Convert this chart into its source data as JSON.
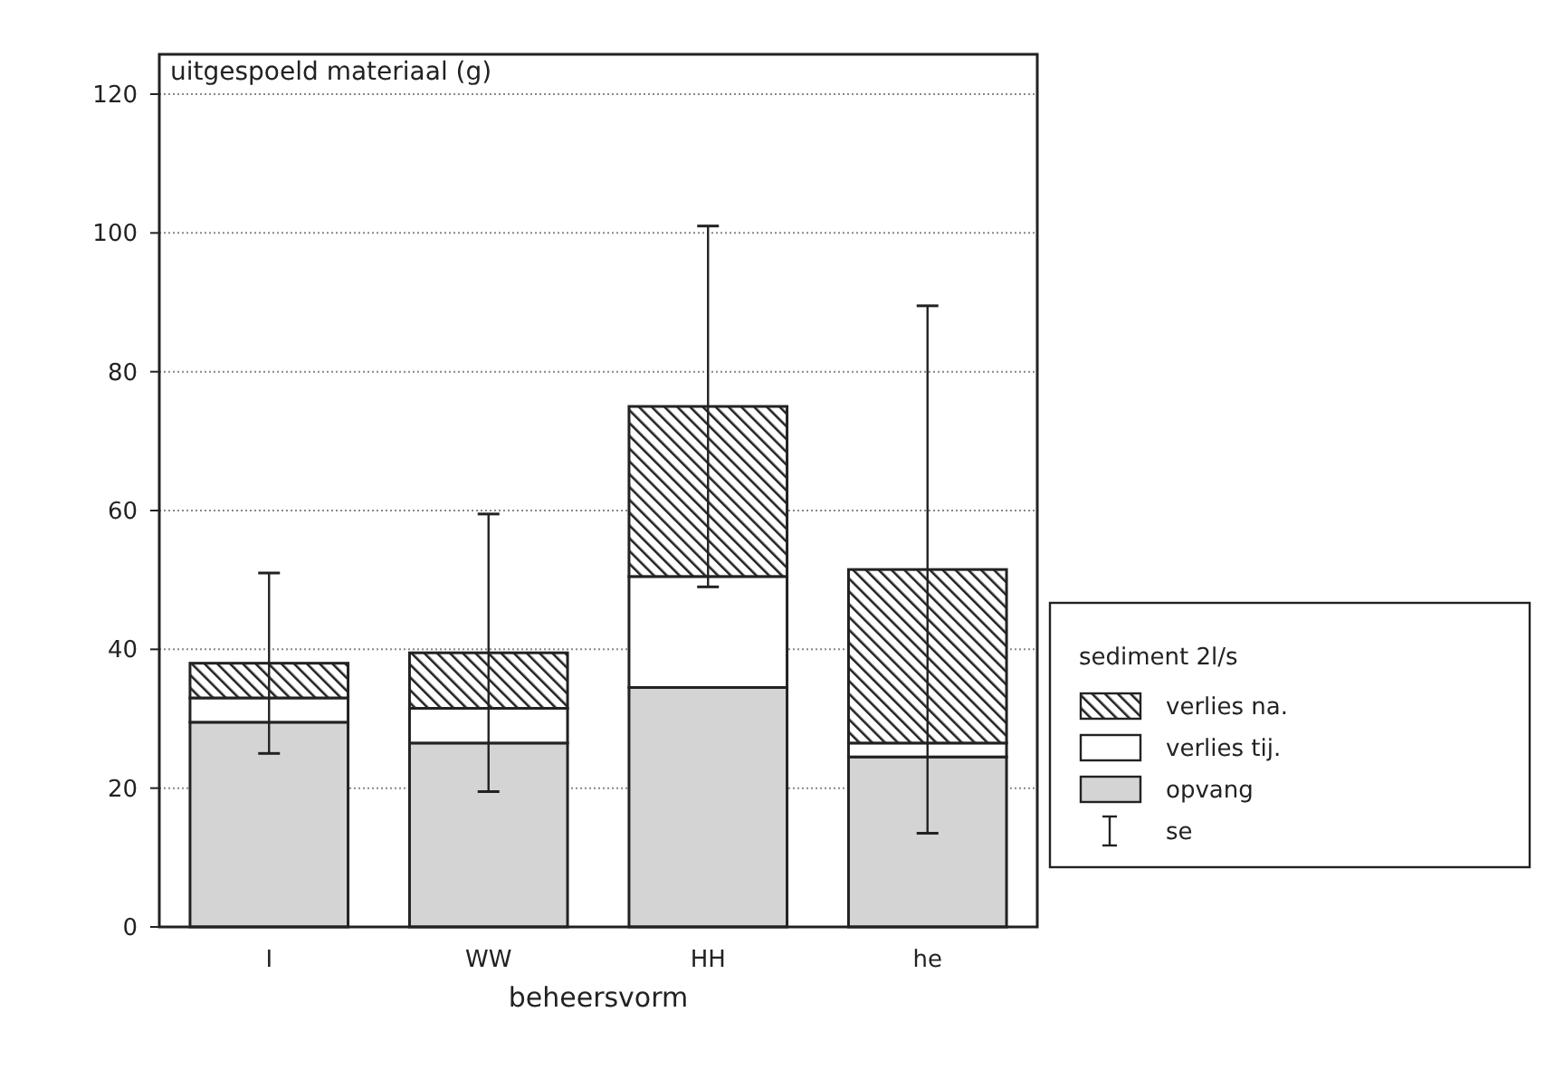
{
  "chart_data": {
    "type": "bar",
    "stacked": true,
    "ylabel": "uitgespoeld materiaal (g)",
    "xlabel": "beheersvorm",
    "legend_title": "sediment 2l/s",
    "categories": [
      "I",
      "WW",
      "HH",
      "he"
    ],
    "series": [
      {
        "name": "opvang",
        "color": "#d4d4d4",
        "values": [
          29.5,
          26.5,
          34.5,
          24.5
        ]
      },
      {
        "name": "verlies tij.",
        "color": "#ffffff",
        "values": [
          3.5,
          5,
          16,
          2
        ]
      },
      {
        "name": "verlies na.",
        "color": "#222222",
        "values": [
          5,
          8,
          24.5,
          25
        ],
        "errors": [
          13,
          20,
          26,
          38
        ]
      }
    ],
    "annotations": [
      "se"
    ],
    "ylim": [
      0,
      120
    ],
    "yticks": [
      0,
      20,
      40,
      60,
      80,
      100,
      120
    ],
    "grid": "y",
    "legend": "right"
  }
}
